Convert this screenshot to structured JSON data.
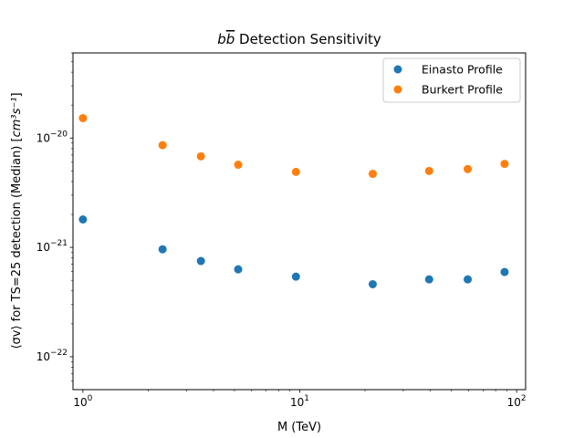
{
  "chart_data": {
    "type": "scatter",
    "title": "b̅b̅ Detection Sensitivity",
    "title_parts": {
      "italic_b": "b",
      "italic_bbar": "b",
      "rest": " Detection Sensitivity"
    },
    "xlabel": "M (TeV)",
    "ylabel_parts": {
      "prefix": "⟨σv⟩ for TS=25 detection (Median)  [",
      "unit": "cm³s⁻¹",
      "suffix": "]"
    },
    "xscale": "log",
    "yscale": "log",
    "xlim": [
      0.9,
      110
    ],
    "ylim": [
      5e-23,
      6e-20
    ],
    "x_ticks": [
      {
        "value": 1,
        "base": "10",
        "exp": "0"
      },
      {
        "value": 10,
        "base": "10",
        "exp": "1"
      },
      {
        "value": 100,
        "base": "10",
        "exp": "2"
      }
    ],
    "y_ticks": [
      {
        "value": 1e-22,
        "base": "10",
        "exp": "−22"
      },
      {
        "value": 1e-21,
        "base": "10",
        "exp": "−21"
      },
      {
        "value": 1e-20,
        "base": "10",
        "exp": "−20"
      }
    ],
    "x": [
      1.0,
      2.33,
      3.5,
      5.2,
      9.6,
      21.7,
      39.5,
      59.5,
      88.0
    ],
    "series": [
      {
        "name": "Einasto Profile",
        "color": "#1f77b4",
        "values": [
          1.8e-21,
          9.6e-22,
          7.5e-22,
          6.3e-22,
          5.4e-22,
          4.6e-22,
          5.1e-22,
          5.1e-22,
          5.95e-22
        ]
      },
      {
        "name": "Burkert Profile",
        "color": "#ff7f0e",
        "values": [
          1.52e-20,
          8.6e-21,
          6.8e-21,
          5.7e-21,
          4.9e-21,
          4.7e-21,
          5e-21,
          5.2e-21,
          5.8e-21
        ]
      }
    ],
    "legend_position": "top-right",
    "grid": false
  }
}
